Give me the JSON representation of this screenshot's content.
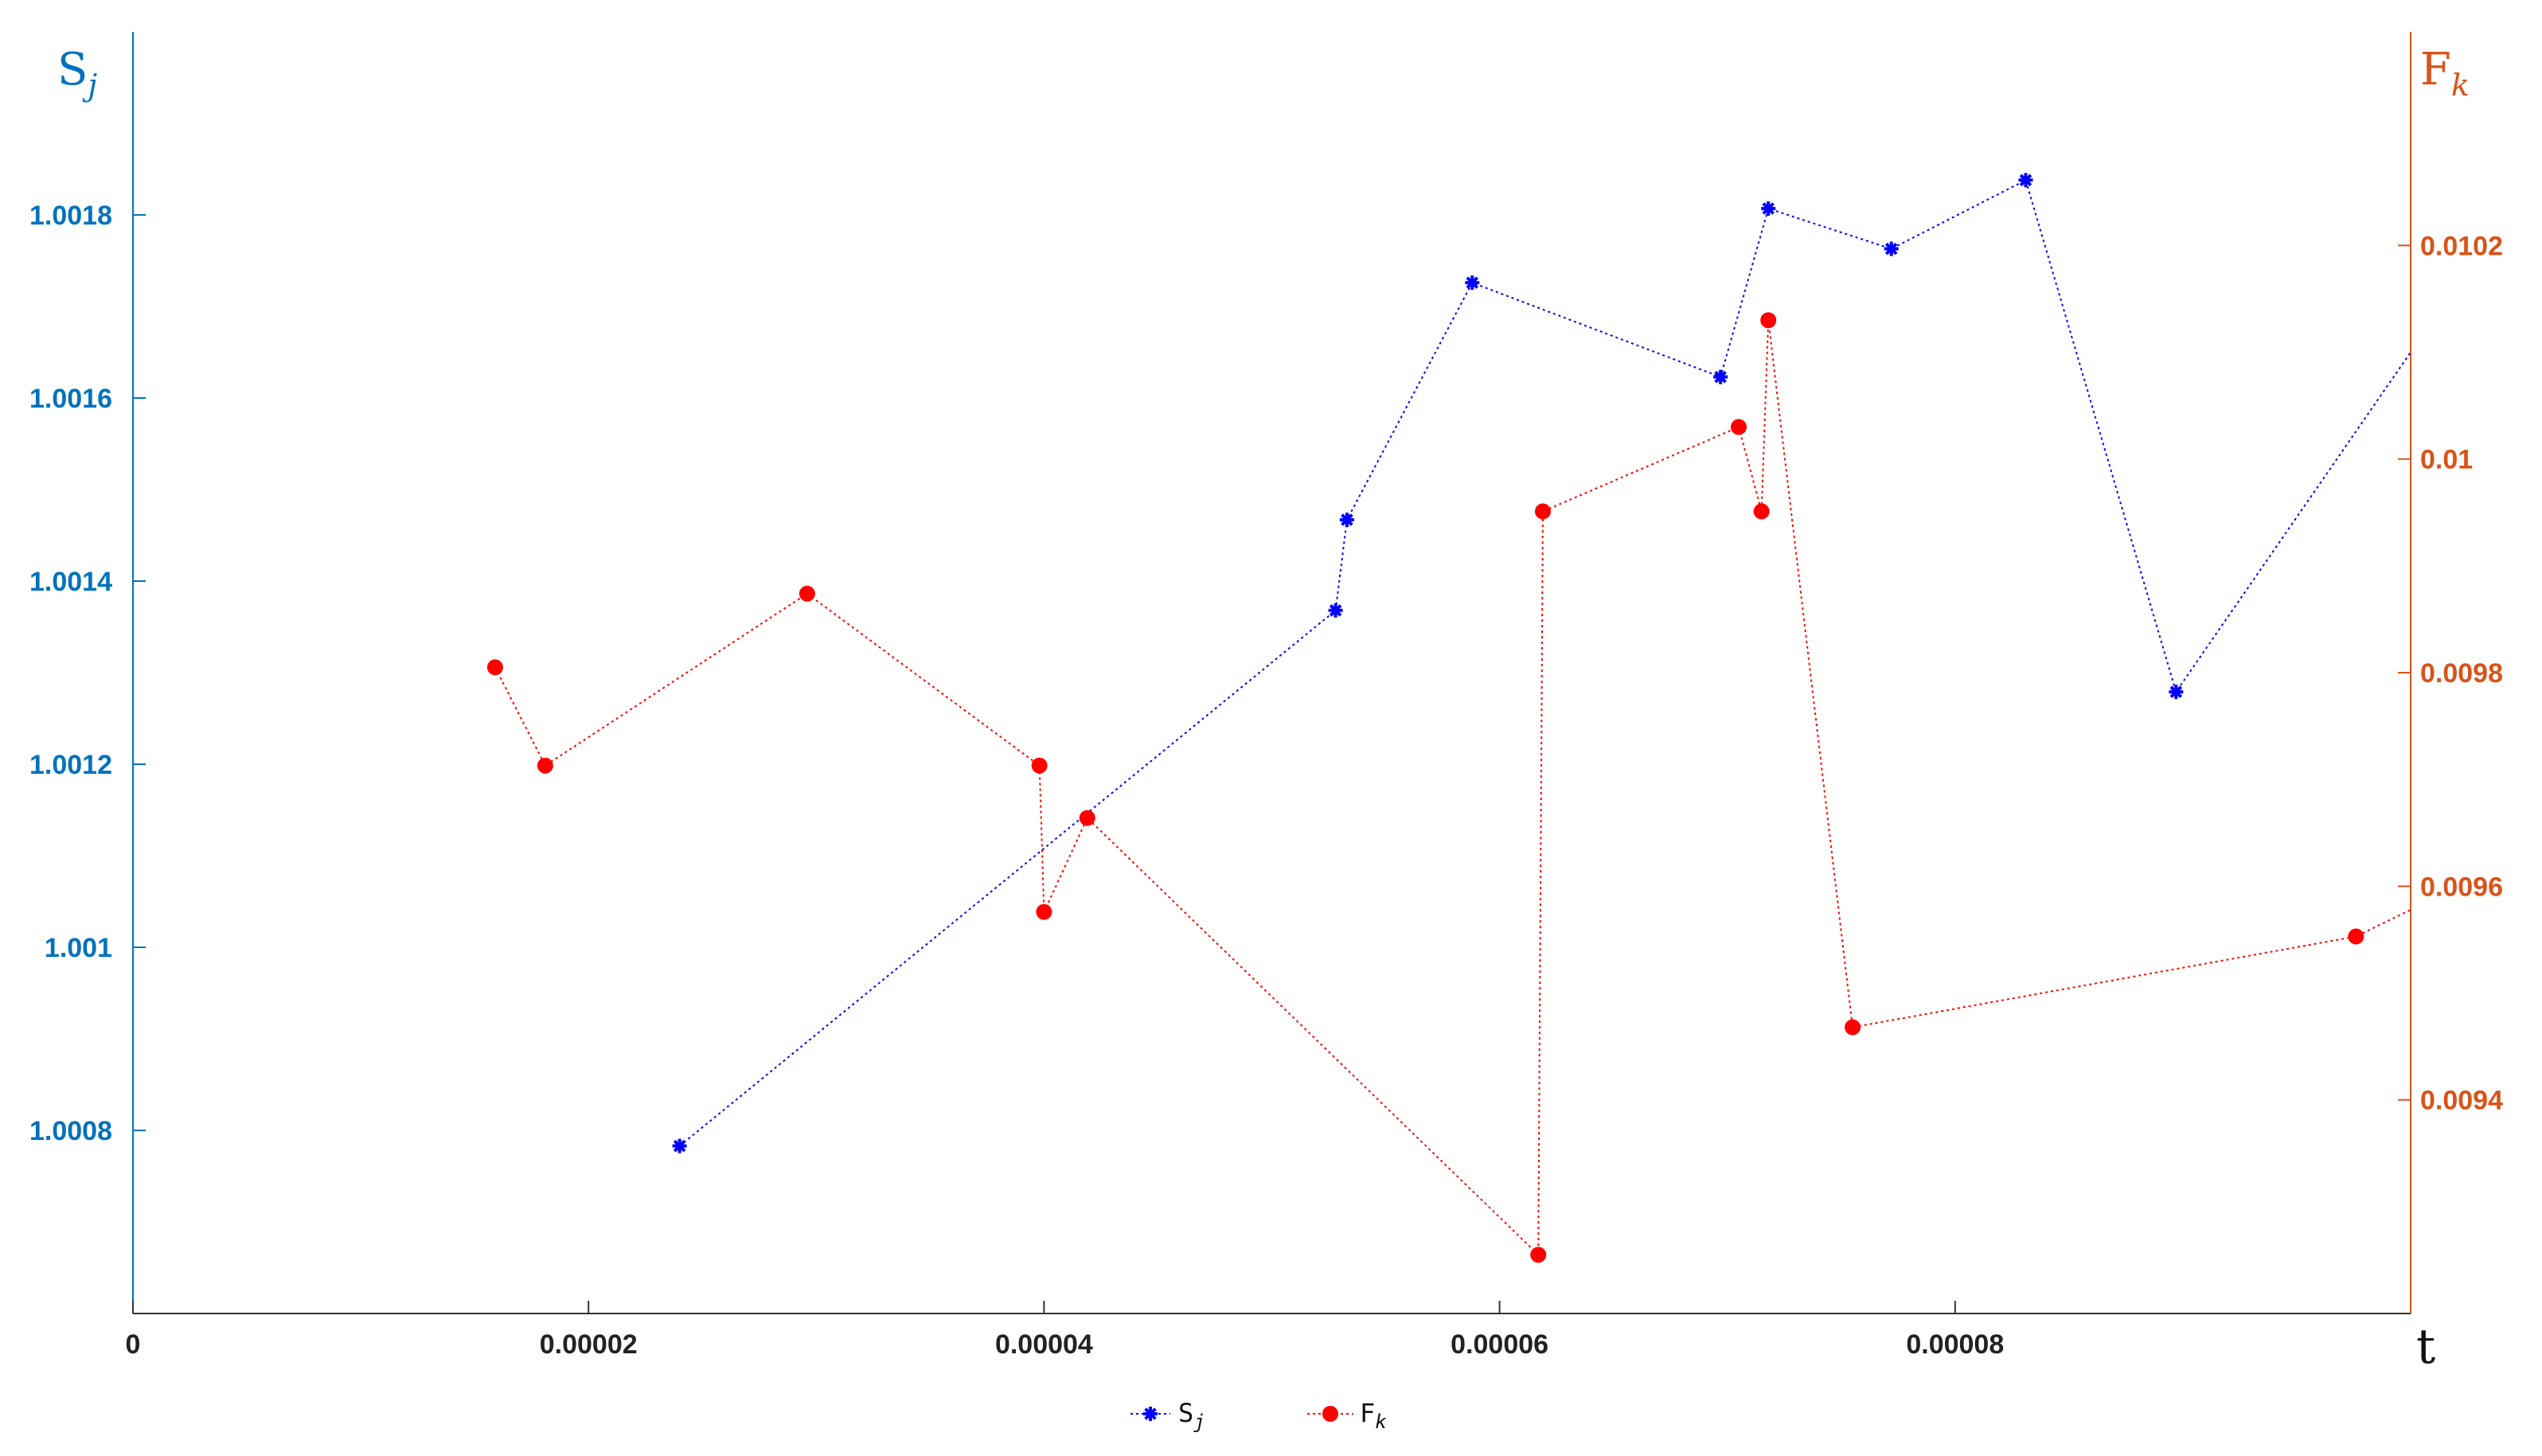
{
  "chart_data": {
    "type": "line",
    "title": "",
    "xlabel": "t",
    "xlim": [
      0,
      0.0001
    ],
    "x_ticks": [
      "0",
      "0.00002",
      "0.00004",
      "0.00006",
      "0.00008"
    ],
    "x_tick_values": [
      0,
      2e-05,
      4e-05,
      6e-05,
      8e-05
    ],
    "left_axis": {
      "label": "S",
      "label_sub": "j",
      "color": "#0072BD",
      "ylim": [
        1.0006,
        1.002
      ],
      "ticks": [
        "1.0008",
        "1.001",
        "1.0012",
        "1.0014",
        "1.0016",
        "1.0018"
      ],
      "tick_values": [
        1.0008,
        1.001,
        1.0012,
        1.0014,
        1.0016,
        1.0018
      ]
    },
    "right_axis": {
      "label": "F",
      "label_sub": "k",
      "color": "#D95319",
      "ylim": [
        0.0092,
        0.0104
      ],
      "ticks": [
        "0.0094",
        "0.0096",
        "0.0098",
        "0.01",
        "0.0102"
      ],
      "tick_values": [
        0.0094,
        0.0096,
        0.0098,
        0.01,
        0.0102
      ]
    },
    "grid": false,
    "legend_position": "bottom-center",
    "series": [
      {
        "name": "S",
        "name_sub": "j",
        "axis": "left",
        "color": "#0000FF",
        "marker": "star",
        "linestyle": "dotted",
        "x": [
          2.4e-05,
          5.28e-05,
          5.33e-05,
          5.88e-05,
          6.97e-05,
          7.18e-05,
          7.72e-05,
          8.31e-05,
          8.97e-05,
          0.0001
        ],
        "y": [
          1.000783,
          1.001368,
          1.001467,
          1.001726,
          1.001623,
          1.001807,
          1.001763,
          1.001838,
          1.001279,
          1.00165
        ]
      },
      {
        "name": "F",
        "name_sub": "k",
        "axis": "right",
        "color": "#FF0000",
        "marker": "circle",
        "linestyle": "dotted",
        "x": [
          1.59e-05,
          1.81e-05,
          2.96e-05,
          3.98e-05,
          4e-05,
          4.19e-05,
          6.17e-05,
          6.19e-05,
          7.05e-05,
          7.15e-05,
          7.18e-05,
          7.55e-05,
          9.76e-05,
          0.0001
        ],
        "y": [
          0.009805,
          0.009713,
          0.009874,
          0.009713,
          0.009576,
          0.009664,
          0.009255,
          0.009951,
          0.01003,
          0.009951,
          0.01013,
          0.009468,
          0.009553,
          0.009578
        ]
      }
    ]
  }
}
